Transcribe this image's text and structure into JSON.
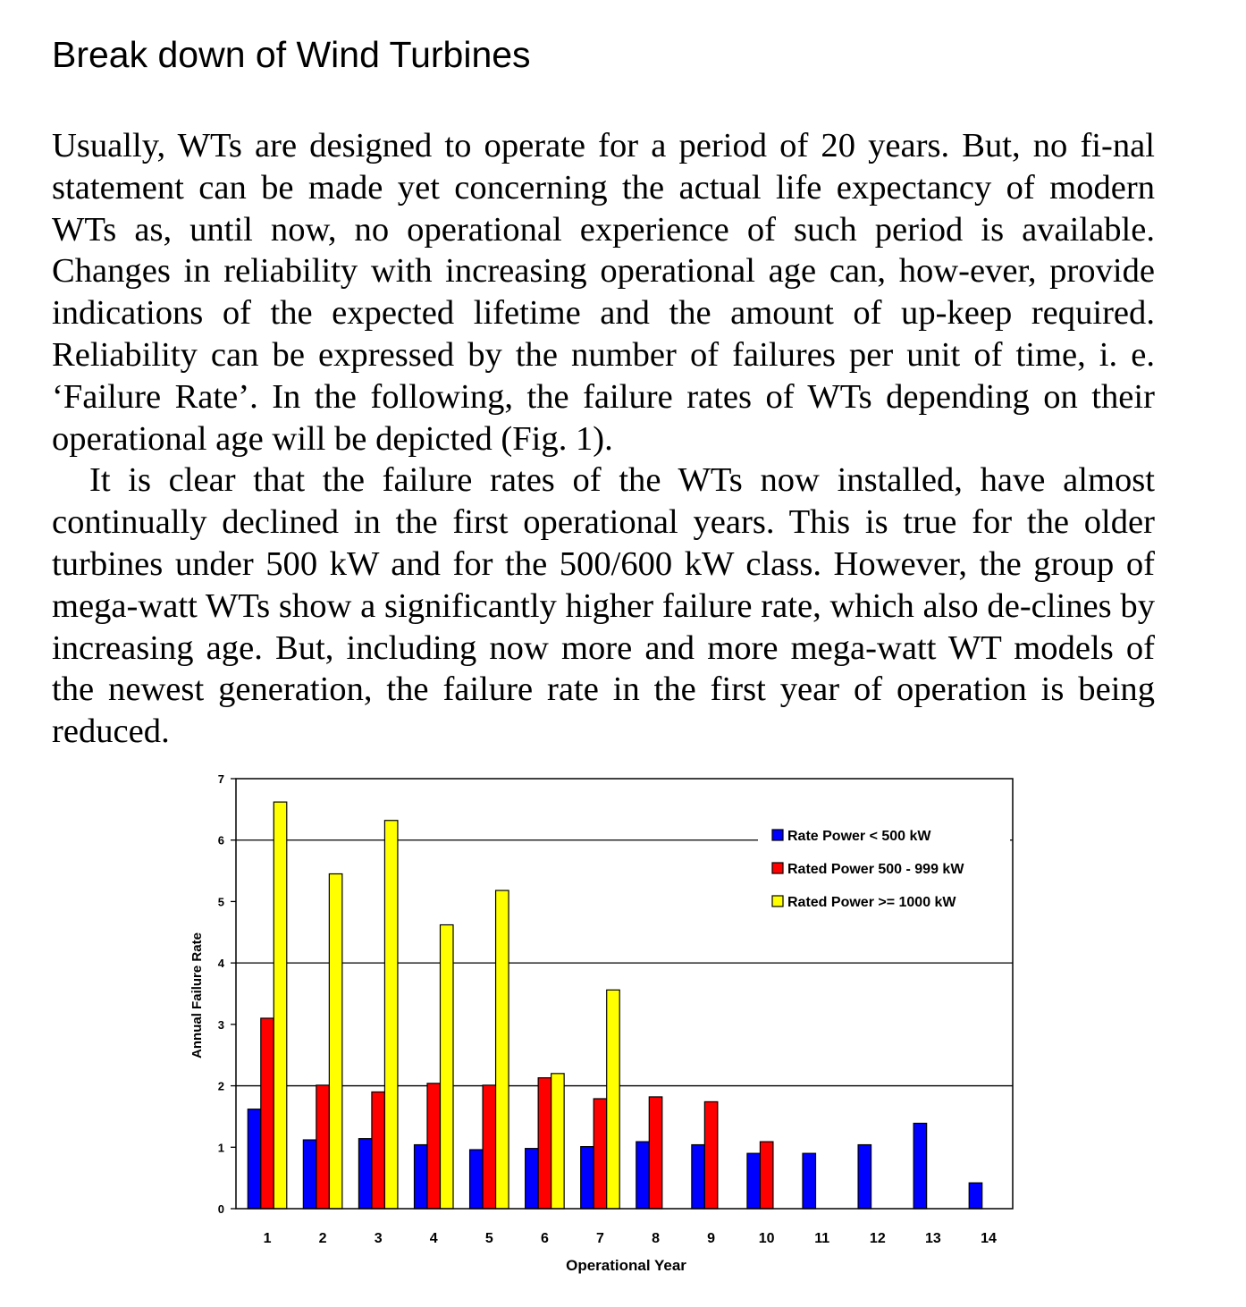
{
  "heading": "Break down of Wind Turbines",
  "paragraphs": [
    "Usually, WTs are designed to operate for a period of 20 years. But, no fi-nal statement can be made yet concerning the actual life expectancy of modern WTs as, until now, no operational experience of such period is available. Changes in reliability with increasing operational age can, how-ever, provide indications of the expected lifetime and the amount of up-keep required. Reliability can be expressed by the number of failures per unit of time, i. e. ‘Failure Rate’. In the following, the failure rates of WTs depending on their operational age will be depicted (Fig. 1).",
    "It is clear that the failure rates of the WTs now installed, have almost continually declined in the first operational years. This is true for the older turbines under 500 kW and for the 500/600 kW class. However, the group of mega-watt WTs show a significantly higher failure rate, which also de-clines by increasing age. But, including now more and more mega-watt WT models of the newest generation, the failure rate in the first year of operation is being reduced."
  ],
  "chart_data": {
    "type": "bar",
    "xlabel": "Operational Year",
    "ylabel": "Annual Failure Rate",
    "ylim": [
      0,
      7
    ],
    "yticks": [
      0,
      1,
      2,
      3,
      4,
      5,
      6,
      7
    ],
    "gridlines": [
      2,
      4,
      6
    ],
    "legend_position": "top-right",
    "categories": [
      "1",
      "2",
      "3",
      "4",
      "5",
      "6",
      "7",
      "8",
      "9",
      "10",
      "11",
      "12",
      "13",
      "14"
    ],
    "series": [
      {
        "name": "Rate Power < 500 kW",
        "color": "#0000ff",
        "values": [
          1.62,
          1.12,
          1.14,
          1.04,
          0.96,
          0.98,
          1.01,
          1.09,
          1.04,
          0.9,
          0.9,
          1.04,
          1.39,
          0.42
        ]
      },
      {
        "name": "Rated Power 500 - 999 kW",
        "color": "#ff0000",
        "values": [
          3.1,
          2.01,
          1.9,
          2.04,
          2.01,
          2.13,
          1.79,
          1.82,
          1.74,
          1.09,
          null,
          null,
          null,
          null
        ]
      },
      {
        "name": "Rated Power >= 1000 kW",
        "color": "#ffff00",
        "values": [
          6.62,
          5.45,
          6.32,
          4.62,
          5.18,
          2.2,
          3.56,
          null,
          null,
          null,
          null,
          null,
          null,
          null
        ]
      }
    ]
  }
}
